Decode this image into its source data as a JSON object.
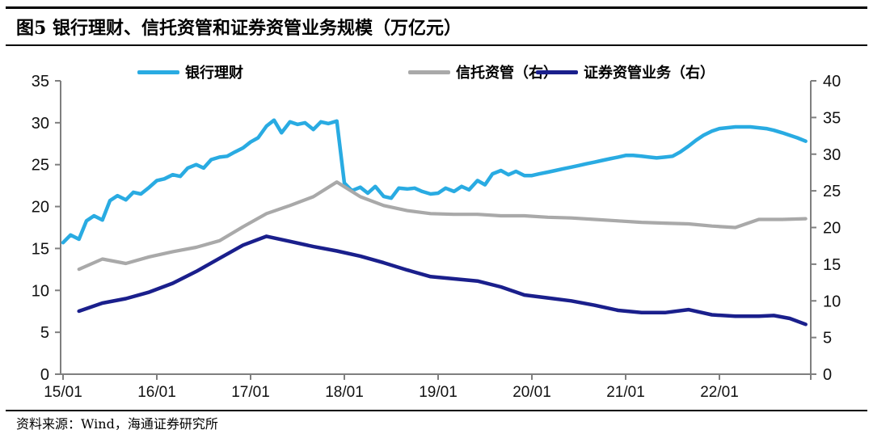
{
  "header": {
    "title": "图5  银行理财、信托资管和证券资管业务规模（万亿元）"
  },
  "footer": {
    "source": "资料来源：Wind，海通证券研究所"
  },
  "chart_data": {
    "type": "line",
    "title": "银行理财、信托资管和证券资管业务规模（万亿元）",
    "figure_label": "图5",
    "unit": "万亿元",
    "grid": false,
    "legend_position": "top",
    "axis_color": "#7F7F7F",
    "tick_label_color": "#111111",
    "left_axis": {
      "min": 0,
      "max": 35,
      "ticks": [
        0,
        5,
        10,
        15,
        20,
        25,
        30,
        35
      ]
    },
    "right_axis": {
      "min": 0,
      "max": 40,
      "ticks": [
        0,
        5,
        10,
        15,
        20,
        25,
        30,
        35,
        40
      ]
    },
    "x_axis": {
      "tick_labels": [
        "15/01",
        "16/01",
        "17/01",
        "18/01",
        "19/01",
        "20/01",
        "21/01",
        "22/01"
      ],
      "tick_positions": [
        2015,
        2016,
        2017,
        2018,
        2019,
        2020,
        2021,
        2022
      ],
      "range": [
        2015.0,
        2023.0
      ]
    },
    "legend": [
      {
        "label": "银行理财",
        "color": "#29ABE2",
        "axis": "left"
      },
      {
        "label": "信托资管（右）",
        "color": "#A9A9A9",
        "axis": "right"
      },
      {
        "label": "证券资管业务（右）",
        "color": "#1A1F8C",
        "axis": "right"
      }
    ],
    "series": [
      {
        "name": "银行理财",
        "axis": "left",
        "color": "#29ABE2",
        "width": 4.5,
        "points": [
          [
            2015.0,
            15.7
          ],
          [
            2015.08,
            16.6
          ],
          [
            2015.17,
            16.1
          ],
          [
            2015.25,
            18.3
          ],
          [
            2015.33,
            18.9
          ],
          [
            2015.42,
            18.4
          ],
          [
            2015.5,
            20.7
          ],
          [
            2015.58,
            21.3
          ],
          [
            2015.67,
            20.8
          ],
          [
            2015.75,
            21.7
          ],
          [
            2015.83,
            21.5
          ],
          [
            2015.92,
            22.3
          ],
          [
            2016.0,
            23.1
          ],
          [
            2016.08,
            23.3
          ],
          [
            2016.17,
            23.8
          ],
          [
            2016.25,
            23.6
          ],
          [
            2016.33,
            24.6
          ],
          [
            2016.42,
            25.0
          ],
          [
            2016.5,
            24.6
          ],
          [
            2016.58,
            25.6
          ],
          [
            2016.67,
            25.9
          ],
          [
            2016.75,
            26.0
          ],
          [
            2016.83,
            26.5
          ],
          [
            2016.92,
            27.0
          ],
          [
            2017.0,
            27.7
          ],
          [
            2017.08,
            28.2
          ],
          [
            2017.17,
            29.6
          ],
          [
            2017.25,
            30.3
          ],
          [
            2017.33,
            28.8
          ],
          [
            2017.42,
            30.1
          ],
          [
            2017.5,
            29.8
          ],
          [
            2017.58,
            30.0
          ],
          [
            2017.67,
            29.2
          ],
          [
            2017.75,
            30.1
          ],
          [
            2017.83,
            29.9
          ],
          [
            2017.92,
            30.2
          ],
          [
            2018.0,
            22.8
          ],
          [
            2018.08,
            21.9
          ],
          [
            2018.17,
            22.3
          ],
          [
            2018.25,
            21.6
          ],
          [
            2018.33,
            22.4
          ],
          [
            2018.42,
            21.2
          ],
          [
            2018.5,
            21.0
          ],
          [
            2018.58,
            22.2
          ],
          [
            2018.67,
            22.1
          ],
          [
            2018.75,
            22.2
          ],
          [
            2018.83,
            21.8
          ],
          [
            2018.92,
            21.5
          ],
          [
            2019.0,
            21.6
          ],
          [
            2019.08,
            22.2
          ],
          [
            2019.17,
            21.8
          ],
          [
            2019.25,
            22.4
          ],
          [
            2019.33,
            22.0
          ],
          [
            2019.42,
            23.1
          ],
          [
            2019.5,
            22.6
          ],
          [
            2019.58,
            23.9
          ],
          [
            2019.67,
            24.3
          ],
          [
            2019.75,
            23.8
          ],
          [
            2019.83,
            24.2
          ],
          [
            2019.92,
            23.7
          ],
          [
            2020.0,
            23.7
          ],
          [
            2020.08,
            23.9
          ],
          [
            2020.17,
            24.1
          ],
          [
            2020.25,
            24.3
          ],
          [
            2020.33,
            24.5
          ],
          [
            2020.42,
            24.7
          ],
          [
            2020.5,
            24.9
          ],
          [
            2020.58,
            25.1
          ],
          [
            2020.67,
            25.3
          ],
          [
            2020.75,
            25.5
          ],
          [
            2020.83,
            25.7
          ],
          [
            2020.92,
            25.9
          ],
          [
            2021.0,
            26.1
          ],
          [
            2021.08,
            26.1
          ],
          [
            2021.17,
            26.0
          ],
          [
            2021.25,
            25.9
          ],
          [
            2021.33,
            25.8
          ],
          [
            2021.42,
            25.9
          ],
          [
            2021.5,
            26.0
          ],
          [
            2021.58,
            26.5
          ],
          [
            2021.67,
            27.2
          ],
          [
            2021.75,
            27.9
          ],
          [
            2021.83,
            28.5
          ],
          [
            2021.92,
            29.0
          ],
          [
            2022.0,
            29.3
          ],
          [
            2022.08,
            29.4
          ],
          [
            2022.17,
            29.5
          ],
          [
            2022.25,
            29.5
          ],
          [
            2022.33,
            29.5
          ],
          [
            2022.42,
            29.4
          ],
          [
            2022.5,
            29.3
          ],
          [
            2022.58,
            29.1
          ],
          [
            2022.67,
            28.8
          ],
          [
            2022.75,
            28.5
          ],
          [
            2022.83,
            28.2
          ],
          [
            2022.92,
            27.8
          ]
        ]
      },
      {
        "name": "信托资管（右）",
        "axis": "right",
        "color": "#A9A9A9",
        "width": 4.2,
        "points": [
          [
            2015.17,
            14.3
          ],
          [
            2015.42,
            15.7
          ],
          [
            2015.67,
            15.1
          ],
          [
            2015.92,
            16.0
          ],
          [
            2016.17,
            16.7
          ],
          [
            2016.42,
            17.3
          ],
          [
            2016.67,
            18.2
          ],
          [
            2016.92,
            20.1
          ],
          [
            2017.17,
            21.9
          ],
          [
            2017.42,
            23.0
          ],
          [
            2017.67,
            24.2
          ],
          [
            2017.92,
            26.2
          ],
          [
            2018.17,
            24.2
          ],
          [
            2018.42,
            23.0
          ],
          [
            2018.67,
            22.3
          ],
          [
            2018.92,
            21.9
          ],
          [
            2019.17,
            21.8
          ],
          [
            2019.42,
            21.8
          ],
          [
            2019.67,
            21.6
          ],
          [
            2019.92,
            21.6
          ],
          [
            2020.17,
            21.4
          ],
          [
            2020.42,
            21.3
          ],
          [
            2020.67,
            21.1
          ],
          [
            2020.92,
            20.9
          ],
          [
            2021.17,
            20.7
          ],
          [
            2021.42,
            20.6
          ],
          [
            2021.67,
            20.5
          ],
          [
            2021.92,
            20.2
          ],
          [
            2022.17,
            20.0
          ],
          [
            2022.42,
            21.1
          ],
          [
            2022.67,
            21.1
          ],
          [
            2022.92,
            21.2
          ]
        ]
      },
      {
        "name": "证券资管业务（右）",
        "axis": "right",
        "color": "#1A1F8C",
        "width": 4.5,
        "points": [
          [
            2015.17,
            8.6
          ],
          [
            2015.42,
            9.7
          ],
          [
            2015.67,
            10.3
          ],
          [
            2015.92,
            11.2
          ],
          [
            2016.17,
            12.4
          ],
          [
            2016.42,
            14.0
          ],
          [
            2016.67,
            15.8
          ],
          [
            2016.92,
            17.6
          ],
          [
            2017.17,
            18.8
          ],
          [
            2017.42,
            18.1
          ],
          [
            2017.67,
            17.4
          ],
          [
            2017.92,
            16.8
          ],
          [
            2018.17,
            16.1
          ],
          [
            2018.42,
            15.2
          ],
          [
            2018.67,
            14.2
          ],
          [
            2018.92,
            13.3
          ],
          [
            2019.17,
            13.0
          ],
          [
            2019.42,
            12.7
          ],
          [
            2019.67,
            11.9
          ],
          [
            2019.92,
            10.8
          ],
          [
            2020.17,
            10.4
          ],
          [
            2020.42,
            10.0
          ],
          [
            2020.67,
            9.4
          ],
          [
            2020.92,
            8.7
          ],
          [
            2021.17,
            8.4
          ],
          [
            2021.42,
            8.4
          ],
          [
            2021.67,
            8.8
          ],
          [
            2021.92,
            8.1
          ],
          [
            2022.17,
            7.9
          ],
          [
            2022.42,
            7.9
          ],
          [
            2022.58,
            8.0
          ],
          [
            2022.75,
            7.6
          ],
          [
            2022.92,
            6.8
          ]
        ]
      }
    ]
  }
}
